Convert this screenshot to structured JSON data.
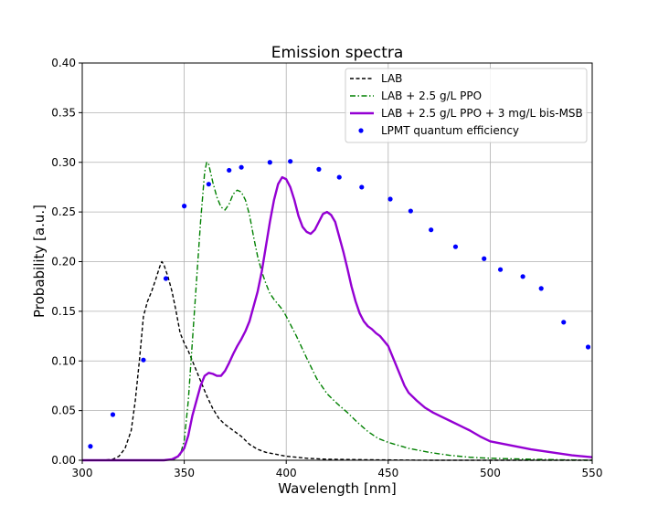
{
  "chart_data": {
    "type": "line",
    "title": "Emission spectra",
    "xlabel": "Wavelength [nm]",
    "ylabel": "Probability [a.u.]",
    "xlim": [
      300,
      550
    ],
    "ylim": [
      0,
      0.4
    ],
    "xticks": [
      "300",
      "350",
      "400",
      "450",
      "500",
      "550"
    ],
    "yticks": [
      "0.00",
      "0.05",
      "0.10",
      "0.15",
      "0.20",
      "0.25",
      "0.30",
      "0.35",
      "0.40"
    ],
    "grid": true,
    "legend_position": "top-right",
    "series": [
      {
        "name": "LAB",
        "color": "#000000",
        "style": "dashed",
        "points": [
          [
            300,
            0
          ],
          [
            310,
            0
          ],
          [
            315,
            0.001
          ],
          [
            318,
            0.004
          ],
          [
            321,
            0.012
          ],
          [
            324,
            0.03
          ],
          [
            326,
            0.06
          ],
          [
            328,
            0.1
          ],
          [
            330,
            0.145
          ],
          [
            332,
            0.16
          ],
          [
            334,
            0.17
          ],
          [
            336,
            0.182
          ],
          [
            338,
            0.195
          ],
          [
            339,
            0.2
          ],
          [
            340,
            0.197
          ],
          [
            342,
            0.185
          ],
          [
            344,
            0.17
          ],
          [
            346,
            0.15
          ],
          [
            348,
            0.128
          ],
          [
            350,
            0.118
          ],
          [
            352,
            0.11
          ],
          [
            355,
            0.095
          ],
          [
            358,
            0.08
          ],
          [
            361,
            0.065
          ],
          [
            364,
            0.052
          ],
          [
            367,
            0.042
          ],
          [
            370,
            0.036
          ],
          [
            374,
            0.03
          ],
          [
            378,
            0.024
          ],
          [
            382,
            0.016
          ],
          [
            386,
            0.011
          ],
          [
            390,
            0.008
          ],
          [
            395,
            0.006
          ],
          [
            400,
            0.004
          ],
          [
            410,
            0.002
          ],
          [
            420,
            0.001
          ],
          [
            440,
            0.0005
          ],
          [
            470,
            0
          ],
          [
            550,
            0
          ]
        ]
      },
      {
        "name": "LAB + 2.5 g/L PPO",
        "color": "#008000",
        "style": "dashdot",
        "points": [
          [
            300,
            0
          ],
          [
            340,
            0
          ],
          [
            345,
            0.001
          ],
          [
            348,
            0.005
          ],
          [
            350,
            0.02
          ],
          [
            352,
            0.06
          ],
          [
            354,
            0.12
          ],
          [
            356,
            0.18
          ],
          [
            358,
            0.24
          ],
          [
            360,
            0.29
          ],
          [
            361,
            0.3
          ],
          [
            362,
            0.298
          ],
          [
            364,
            0.28
          ],
          [
            366,
            0.265
          ],
          [
            368,
            0.255
          ],
          [
            370,
            0.252
          ],
          [
            372,
            0.258
          ],
          [
            374,
            0.268
          ],
          [
            376,
            0.272
          ],
          [
            378,
            0.27
          ],
          [
            380,
            0.262
          ],
          [
            382,
            0.247
          ],
          [
            384,
            0.225
          ],
          [
            386,
            0.205
          ],
          [
            388,
            0.19
          ],
          [
            390,
            0.178
          ],
          [
            392,
            0.168
          ],
          [
            394,
            0.162
          ],
          [
            396,
            0.157
          ],
          [
            398,
            0.152
          ],
          [
            400,
            0.145
          ],
          [
            405,
            0.125
          ],
          [
            410,
            0.103
          ],
          [
            415,
            0.082
          ],
          [
            420,
            0.067
          ],
          [
            425,
            0.057
          ],
          [
            430,
            0.048
          ],
          [
            435,
            0.038
          ],
          [
            440,
            0.029
          ],
          [
            445,
            0.022
          ],
          [
            450,
            0.018
          ],
          [
            460,
            0.012
          ],
          [
            470,
            0.008
          ],
          [
            480,
            0.005
          ],
          [
            490,
            0.003
          ],
          [
            500,
            0.002
          ],
          [
            520,
            0.001
          ],
          [
            550,
            0
          ]
        ]
      },
      {
        "name": "LAB + 2.5 g/L PPO + 3 mg/L bis-MSB",
        "color": "#9400D3",
        "style": "solid",
        "points": [
          [
            300,
            0
          ],
          [
            340,
            0
          ],
          [
            344,
            0.001
          ],
          [
            347,
            0.004
          ],
          [
            350,
            0.012
          ],
          [
            352,
            0.025
          ],
          [
            354,
            0.045
          ],
          [
            356,
            0.06
          ],
          [
            358,
            0.075
          ],
          [
            360,
            0.085
          ],
          [
            362,
            0.088
          ],
          [
            364,
            0.087
          ],
          [
            366,
            0.085
          ],
          [
            368,
            0.085
          ],
          [
            370,
            0.09
          ],
          [
            372,
            0.098
          ],
          [
            374,
            0.107
          ],
          [
            376,
            0.115
          ],
          [
            378,
            0.122
          ],
          [
            380,
            0.13
          ],
          [
            382,
            0.14
          ],
          [
            384,
            0.155
          ],
          [
            386,
            0.17
          ],
          [
            388,
            0.19
          ],
          [
            390,
            0.215
          ],
          [
            392,
            0.24
          ],
          [
            394,
            0.262
          ],
          [
            396,
            0.278
          ],
          [
            398,
            0.285
          ],
          [
            400,
            0.283
          ],
          [
            402,
            0.275
          ],
          [
            404,
            0.262
          ],
          [
            406,
            0.246
          ],
          [
            408,
            0.235
          ],
          [
            410,
            0.23
          ],
          [
            412,
            0.228
          ],
          [
            414,
            0.232
          ],
          [
            416,
            0.24
          ],
          [
            418,
            0.248
          ],
          [
            420,
            0.25
          ],
          [
            422,
            0.247
          ],
          [
            424,
            0.24
          ],
          [
            426,
            0.225
          ],
          [
            428,
            0.21
          ],
          [
            430,
            0.193
          ],
          [
            432,
            0.175
          ],
          [
            434,
            0.16
          ],
          [
            436,
            0.148
          ],
          [
            438,
            0.14
          ],
          [
            440,
            0.135
          ],
          [
            442,
            0.132
          ],
          [
            444,
            0.128
          ],
          [
            446,
            0.125
          ],
          [
            448,
            0.12
          ],
          [
            450,
            0.115
          ],
          [
            452,
            0.105
          ],
          [
            454,
            0.095
          ],
          [
            456,
            0.085
          ],
          [
            458,
            0.075
          ],
          [
            460,
            0.068
          ],
          [
            464,
            0.06
          ],
          [
            468,
            0.053
          ],
          [
            472,
            0.048
          ],
          [
            476,
            0.044
          ],
          [
            480,
            0.04
          ],
          [
            485,
            0.035
          ],
          [
            490,
            0.03
          ],
          [
            495,
            0.024
          ],
          [
            500,
            0.019
          ],
          [
            510,
            0.015
          ],
          [
            520,
            0.011
          ],
          [
            530,
            0.008
          ],
          [
            540,
            0.005
          ],
          [
            550,
            0.003
          ]
        ]
      },
      {
        "name": "LPMT quantum efficiency",
        "color": "#0000ff",
        "style": "markers",
        "points": [
          [
            304,
            0.014
          ],
          [
            315,
            0.046
          ],
          [
            330,
            0.101
          ],
          [
            341,
            0.183
          ],
          [
            350,
            0.256
          ],
          [
            362,
            0.278
          ],
          [
            372,
            0.292
          ],
          [
            378,
            0.295
          ],
          [
            392,
            0.3
          ],
          [
            402,
            0.301
          ],
          [
            416,
            0.293
          ],
          [
            426,
            0.285
          ],
          [
            437,
            0.275
          ],
          [
            451,
            0.263
          ],
          [
            461,
            0.251
          ],
          [
            471,
            0.232
          ],
          [
            483,
            0.215
          ],
          [
            497,
            0.203
          ],
          [
            505,
            0.192
          ],
          [
            516,
            0.185
          ],
          [
            525,
            0.173
          ],
          [
            536,
            0.139
          ],
          [
            548,
            0.114
          ]
        ]
      }
    ]
  }
}
